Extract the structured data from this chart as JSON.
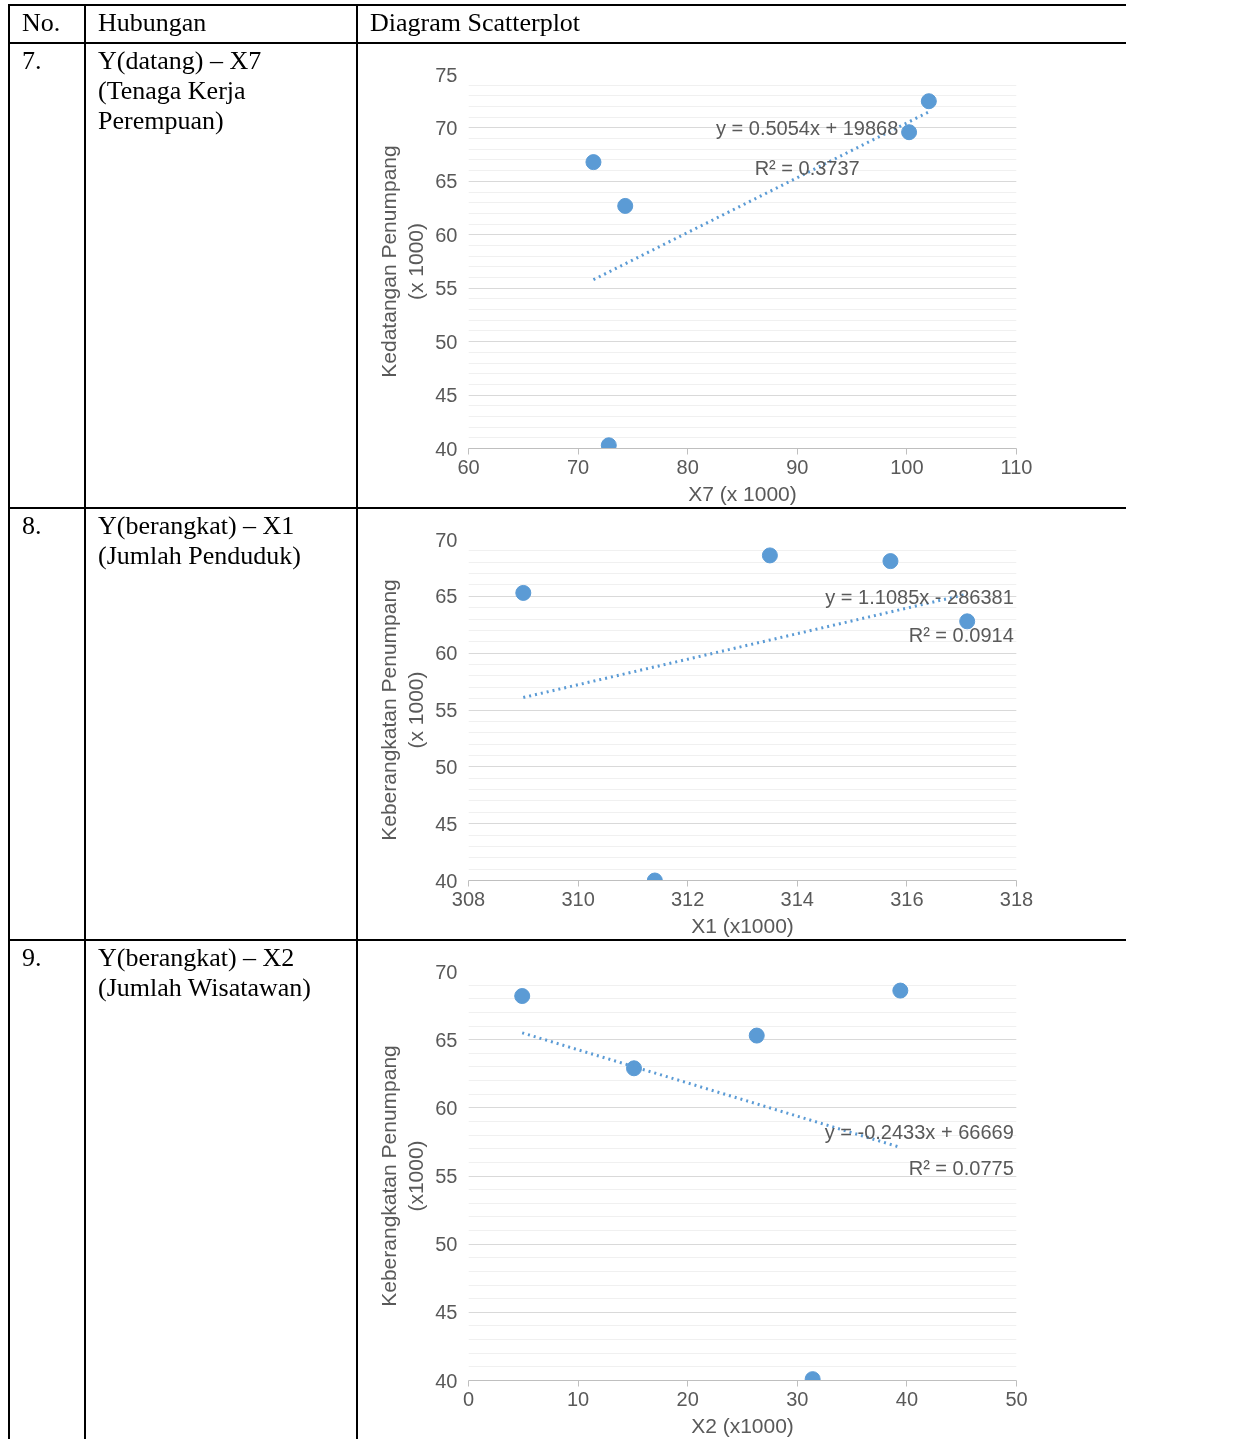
{
  "chart_data": [
    {
      "type": "other",
      "annotations": [
        "No.",
        "Hubungan",
        "Diagram Scatterplot"
      ]
    },
    {
      "type": "scatter",
      "xlabel": "X7 (x 1000)",
      "ylabel": "Kedatangan Penumpang\n(x 1000)",
      "xlim": [
        60,
        110
      ],
      "ylim": [
        40,
        75
      ],
      "xticks": [
        60,
        70,
        80,
        90,
        100,
        110
      ],
      "yticks": [
        40,
        45,
        50,
        55,
        60,
        65,
        70,
        75
      ],
      "grid": "y",
      "series": [
        {
          "type": "scatter",
          "marker": "circle",
          "color": "#5b9bd5",
          "x": [
            71.4,
            74.3,
            72.8,
            100.2,
            102.0
          ],
          "values": [
            66.8,
            62.7,
            40.3,
            69.6,
            72.5
          ]
        },
        {
          "type": "line",
          "marker": "none",
          "line_style": "dotted",
          "color": "#5b9bd5",
          "x": [
            71.4,
            102.0
          ],
          "values": [
            55.8,
            71.5
          ]
        }
      ],
      "annotations": [
        "7.",
        "Y(datang) – X7 (Tenaga Kerja Perempuan)",
        "y = 0.5054x + 19868",
        "R² = 0.3737"
      ]
    },
    {
      "type": "scatter",
      "xlabel": "X1 (x1000)",
      "ylabel": "Keberangkatan Penumpang\n(x 1000)",
      "xlim": [
        308,
        318
      ],
      "ylim": [
        40,
        70
      ],
      "xticks": [
        308,
        310,
        312,
        314,
        316,
        318
      ],
      "yticks": [
        40,
        45,
        50,
        55,
        60,
        65,
        70
      ],
      "grid": "y",
      "series": [
        {
          "type": "scatter",
          "marker": "circle",
          "color": "#5b9bd5",
          "x": [
            309.0,
            313.5,
            315.7,
            317.1,
            311.4
          ],
          "values": [
            65.3,
            68.6,
            68.1,
            62.8,
            40.0
          ]
        },
        {
          "type": "line",
          "marker": "none",
          "line_style": "dotted",
          "color": "#5b9bd5",
          "x": [
            309.0,
            317.1
          ],
          "values": [
            56.1,
            65.2
          ]
        }
      ],
      "annotations": [
        "8.",
        "Y(berangkat) – X1 (Jumlah Penduduk)",
        "y = 1.1085x - 286381",
        "R² = 0.0914"
      ]
    },
    {
      "type": "scatter",
      "xlabel": "X2 (x1000)",
      "ylabel": "Keberangkatan Penumpang\n(x1000)",
      "xlim": [
        0,
        50
      ],
      "ylim": [
        40,
        70
      ],
      "xticks": [
        0,
        10,
        20,
        30,
        40,
        50
      ],
      "yticks": [
        40,
        45,
        50,
        55,
        60,
        65,
        70
      ],
      "grid": "y",
      "series": [
        {
          "type": "scatter",
          "marker": "circle",
          "color": "#5b9bd5",
          "x": [
            4.9,
            15.1,
            26.3,
            31.4,
            39.4
          ],
          "values": [
            68.2,
            62.9,
            65.3,
            40.1,
            68.6
          ]
        },
        {
          "type": "line",
          "marker": "none",
          "line_style": "dotted",
          "color": "#5b9bd5",
          "x": [
            4.9,
            39.4
          ],
          "values": [
            65.5,
            57.1
          ]
        }
      ],
      "annotations": [
        "9.",
        "Y(berangkat) – X2 (Jumlah Wisatawan)",
        "y = -0.2433x + 66669",
        "R² = 0.0775"
      ]
    }
  ]
}
